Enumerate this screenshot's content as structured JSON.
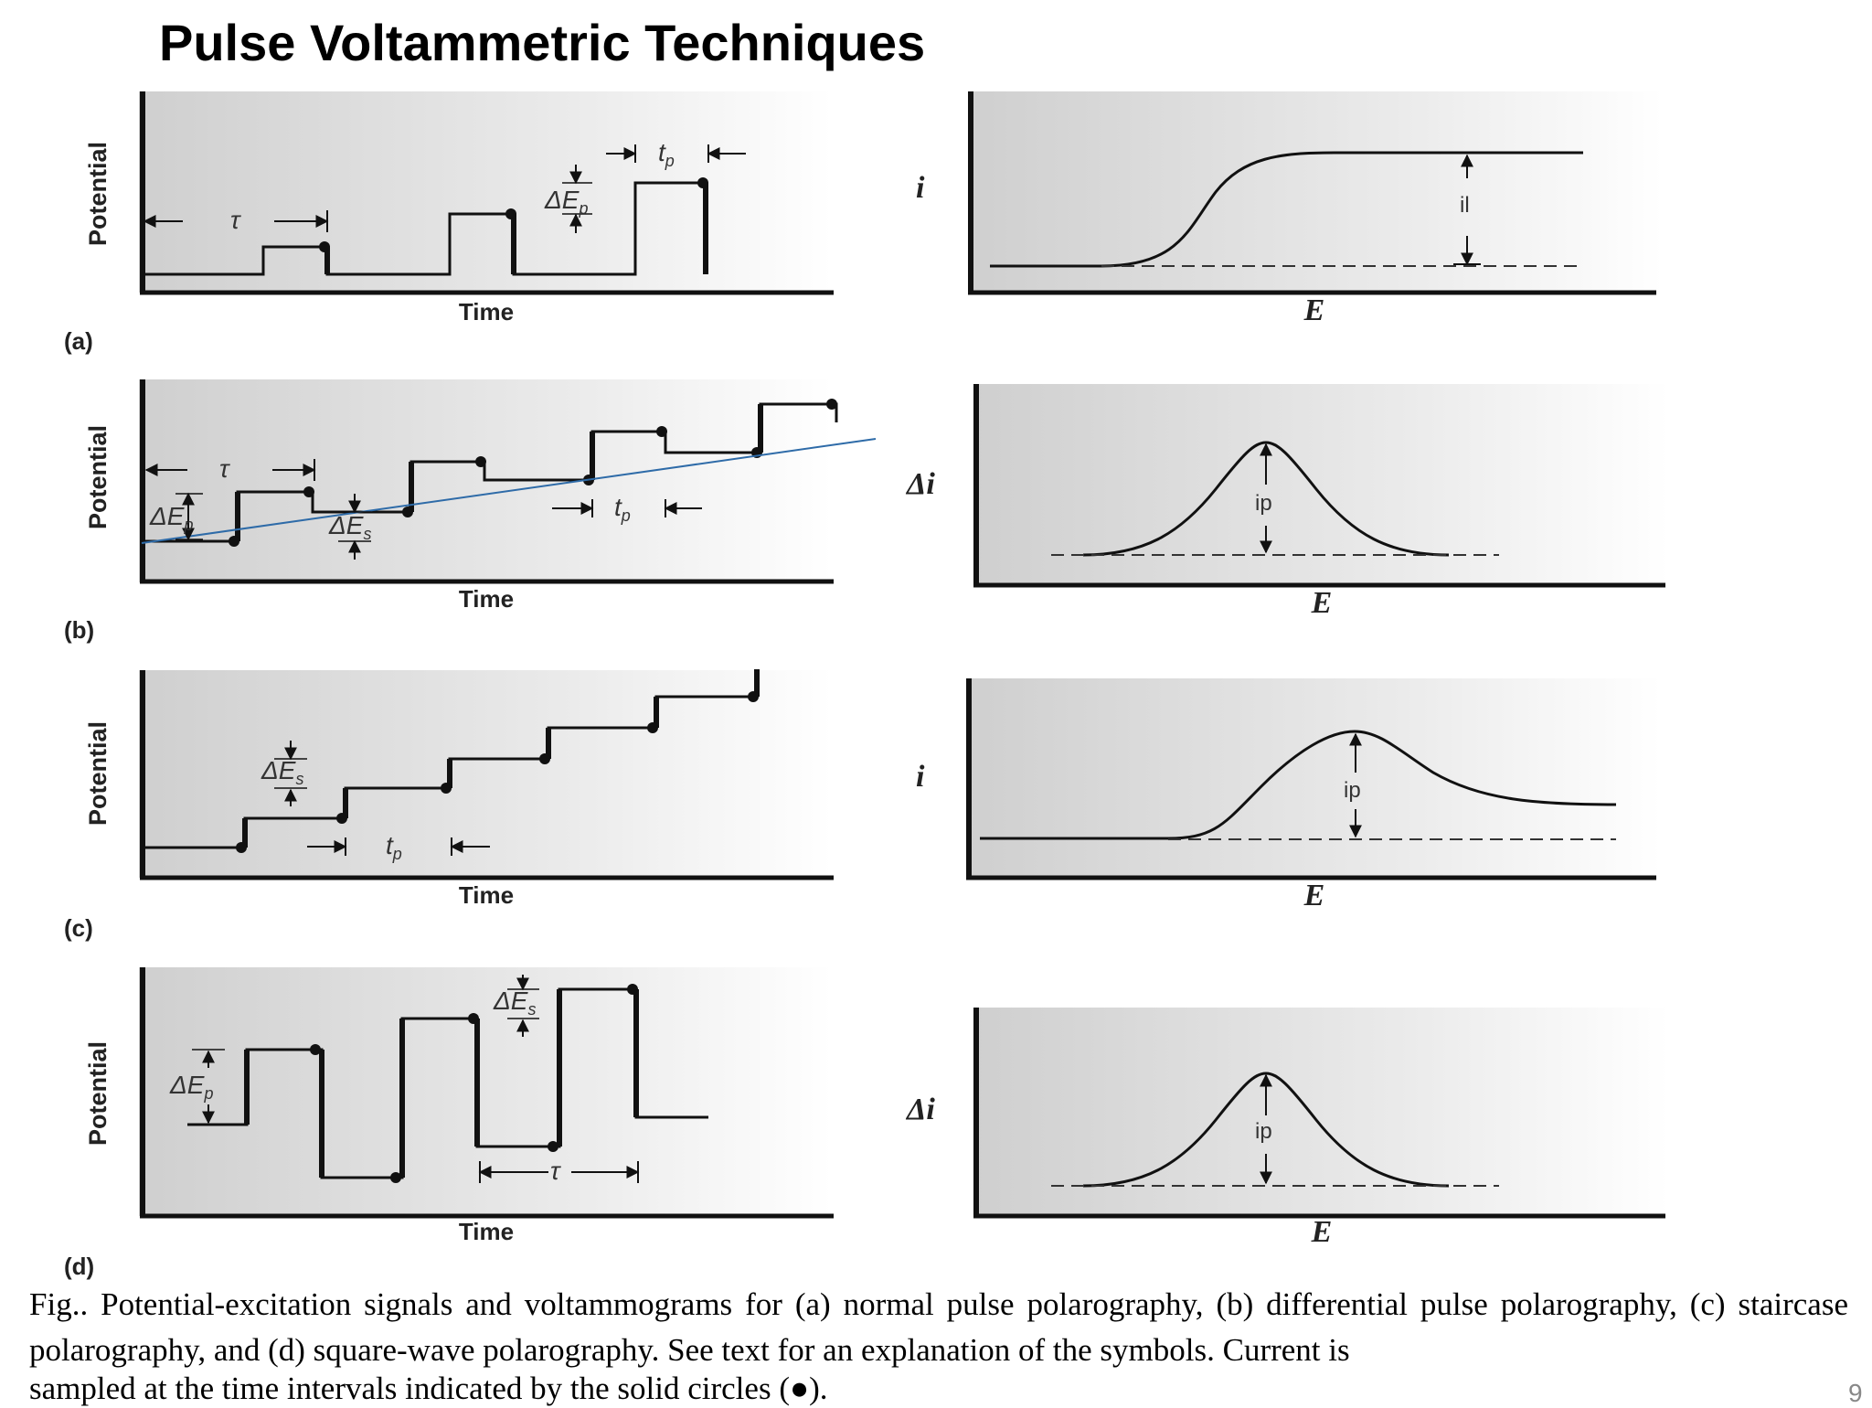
{
  "title": "Pulse Voltammetric Techniques",
  "panels": [
    {
      "label": "(a)",
      "ylabel": "Potential",
      "xlabel": "Time",
      "right_ylabel": "i",
      "right_xlabel": "E",
      "right_annot": "il"
    },
    {
      "label": "(b)",
      "ylabel": "Potential",
      "xlabel": "Time",
      "right_ylabel": "Δi",
      "right_xlabel": "E",
      "right_annot": "ip"
    },
    {
      "label": "(c)",
      "ylabel": "Potential",
      "xlabel": "Time",
      "right_ylabel": "i",
      "right_xlabel": "E",
      "right_annot": "ip"
    },
    {
      "label": "(d)",
      "ylabel": "Potential",
      "xlabel": "Time",
      "right_ylabel": "Δi",
      "right_xlabel": "E",
      "right_annot": "ip"
    }
  ],
  "symbols": {
    "tau": "τ",
    "tp": "t",
    "tp_sub": "p",
    "dEp": "ΔE",
    "dEp_sub": "p",
    "dEs": "ΔE",
    "dEs_sub": "s"
  },
  "caption": "Fig.. Potential-excitation signals and voltammograms for (a) normal pulse polarography, (b) differential pulse polarography, (c) staircase polarography, and (d) square-wave polarography. See text for an explanation of the symbols. Current is",
  "caption_last": "sampled at the time intervals indicated by the solid circles (●).",
  "slide_number": "9"
}
